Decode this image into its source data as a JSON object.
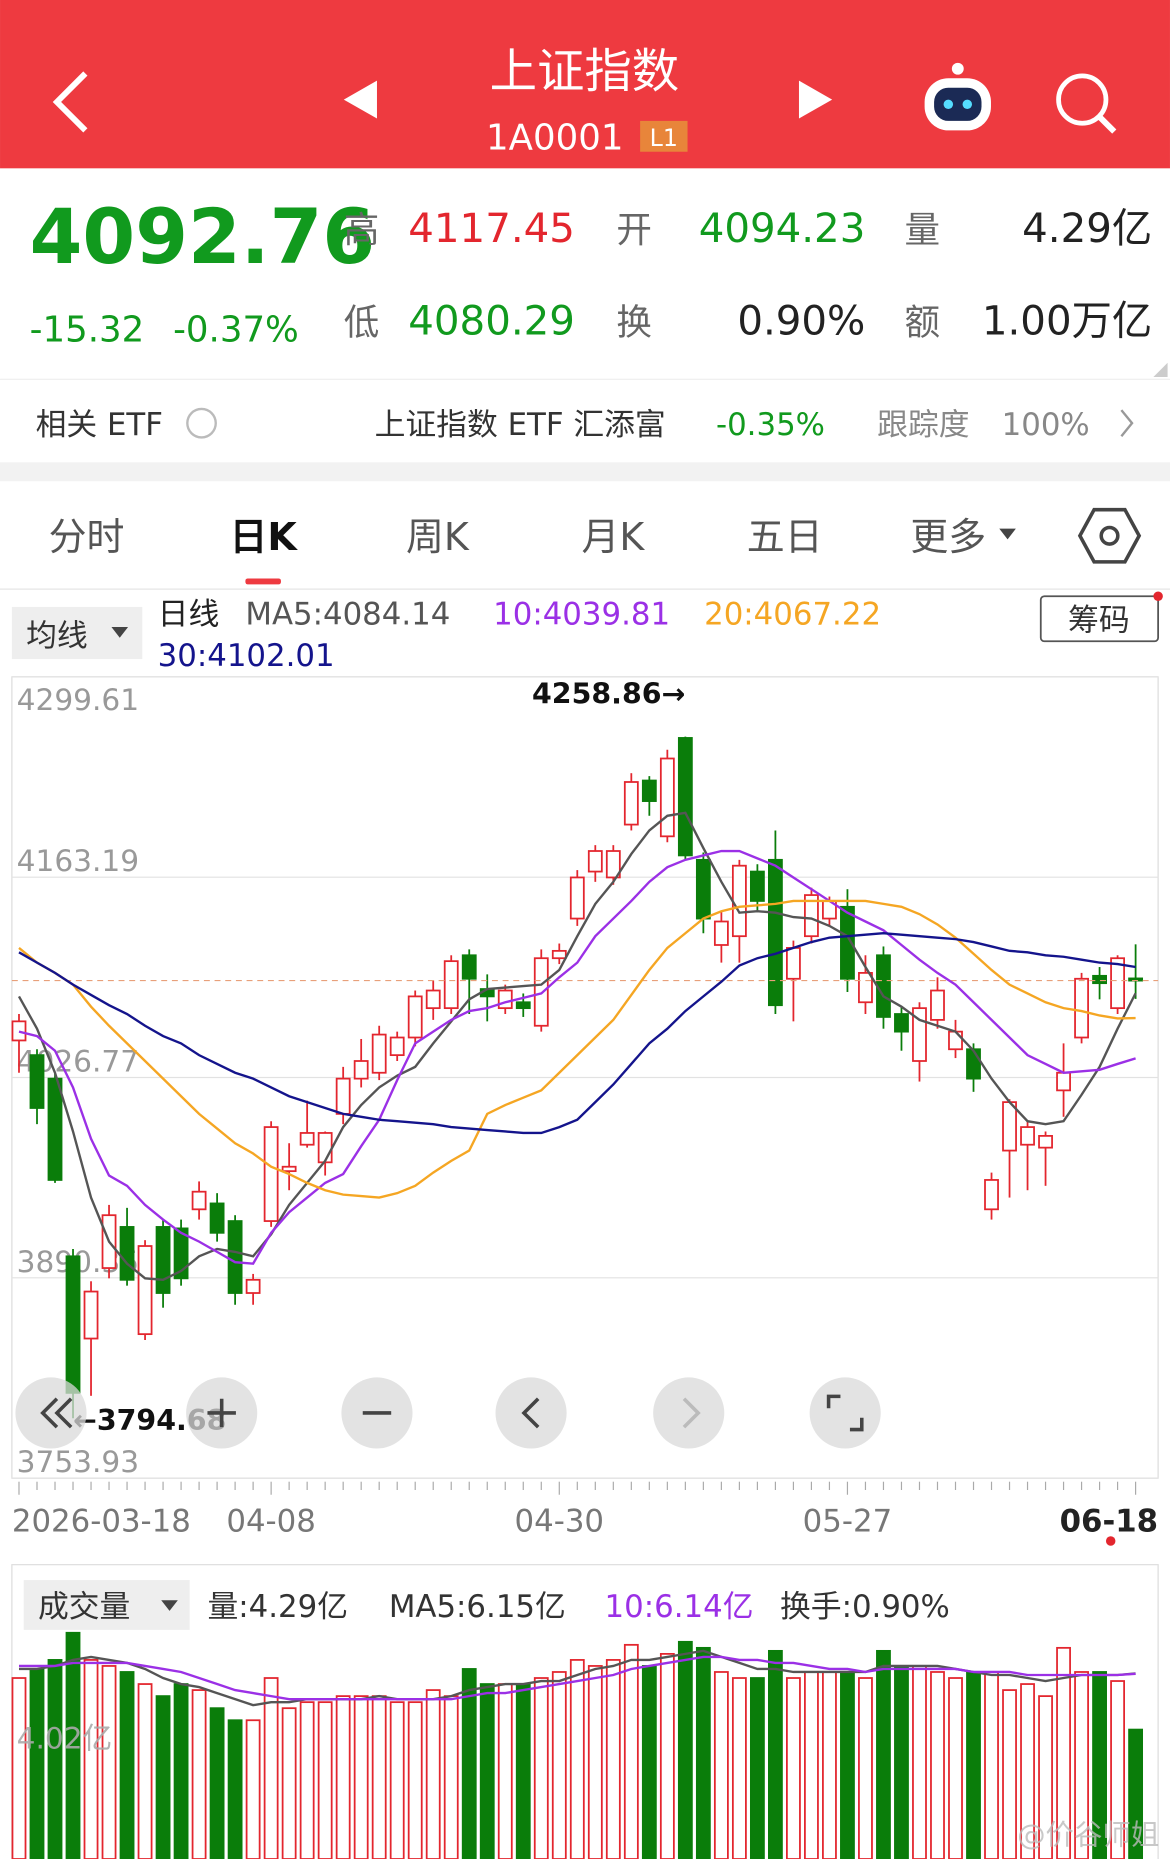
{
  "header": {
    "title": "上证指数",
    "code": "1A0001",
    "badge": "L1"
  },
  "quote": {
    "price": "4092.76",
    "change": "-15.32",
    "change_pct": "-0.37%",
    "stats": [
      {
        "label": "高",
        "value": "4117.45"
      },
      {
        "label": "开",
        "value": "4094.23"
      },
      {
        "label": "量",
        "value": "4.29亿"
      },
      {
        "label": "低",
        "value": "4080.29"
      },
      {
        "label": "换",
        "value": "0.90%"
      },
      {
        "label": "额",
        "value": "1.00万亿"
      }
    ]
  },
  "etf": {
    "label": "相关 ETF",
    "name": "上证指数 ETF 汇添富",
    "change": "-0.35%",
    "tracking_label": "跟踪度",
    "tracking": "100%"
  },
  "tabs": [
    "分时",
    "日K",
    "周K",
    "月K",
    "五日",
    "更多"
  ],
  "chip_button": "筹码",
  "watermark": "@价谷师姐",
  "chart_data": [
    {
      "type": "candlestick",
      "selector": "均线",
      "title": "日线",
      "categories": [
        "2026-03-18",
        null,
        null,
        null,
        null,
        null,
        null,
        null,
        null,
        null,
        null,
        null,
        null,
        null,
        "04-08",
        null,
        null,
        null,
        null,
        null,
        null,
        null,
        null,
        null,
        null,
        null,
        null,
        null,
        null,
        null,
        "04-30",
        null,
        null,
        null,
        null,
        null,
        null,
        null,
        null,
        null,
        null,
        null,
        null,
        null,
        null,
        null,
        "05-27",
        null,
        null,
        null,
        null,
        null,
        null,
        null,
        null,
        null,
        null,
        null,
        null,
        null,
        null,
        null,
        "06-18"
      ],
      "open": [
        4052,
        4042,
        4026,
        3905,
        3849,
        3897,
        3925,
        3852,
        3925,
        3924,
        3937,
        3941,
        3929,
        3880,
        3929,
        3963,
        3981,
        3969,
        4002,
        4026,
        4030,
        4042,
        4054,
        4074,
        4074,
        4110,
        4087,
        4074,
        4078,
        4062,
        4108,
        4135,
        4167,
        4163,
        4199,
        4229,
        4191,
        4258,
        4175,
        4117,
        4123,
        4167,
        4175,
        4094,
        4123,
        4135,
        4143,
        4078,
        4110,
        4070,
        4038,
        4066,
        4046,
        4046,
        3937,
        3977,
        3981,
        3979,
        4018,
        4054,
        4096,
        4074,
        4094.23
      ],
      "high": [
        4070,
        4046,
        4030,
        3910,
        3888,
        3940,
        3938,
        3916,
        3930,
        3930,
        3956,
        3948,
        3933,
        3893,
        3997,
        3982,
        4011,
        3990,
        4034,
        4053,
        4062,
        4058,
        4086,
        4093,
        4110,
        4114,
        4097,
        4090,
        4084,
        4114,
        4118,
        4168,
        4185,
        4185,
        4234,
        4232,
        4250,
        4258.86,
        4180,
        4140,
        4175,
        4172,
        4195,
        4120,
        4156,
        4150,
        4155,
        4110,
        4116,
        4075,
        4078,
        4095,
        4066,
        4050,
        3962,
        4012,
        3997,
        3990,
        4050,
        4098,
        4102,
        4110,
        4117.45
      ],
      "low": [
        4030,
        3995,
        3955,
        3794.68,
        3810,
        3890,
        3885,
        3848,
        3870,
        3885,
        3930,
        3915,
        3872,
        3872,
        3925,
        3950,
        3979,
        3960,
        3995,
        4020,
        4025,
        4038,
        4048,
        4066,
        4070,
        4070,
        4065,
        4070,
        4068,
        4058,
        4104,
        4130,
        4160,
        4158,
        4195,
        4205,
        4187,
        4175,
        4125,
        4105,
        4105,
        4140,
        4070,
        4065,
        4118,
        4130,
        4085,
        4070,
        4060,
        4045,
        4024,
        4060,
        4040,
        4017,
        3930,
        3945,
        3950,
        3953,
        4000,
        4050,
        4080,
        4070,
        4080.29
      ],
      "close": [
        4065,
        4006,
        3957,
        3812,
        3881,
        3933,
        3889,
        3912,
        3880,
        3890,
        3949,
        3921,
        3880,
        3889,
        3993,
        3966,
        3989,
        3989,
        4026,
        4038,
        4056,
        4054,
        4082,
        4086,
        4106,
        4094,
        4082,
        4086,
        4074,
        4108,
        4113,
        4163,
        4181,
        4181,
        4228,
        4215,
        4244,
        4178,
        4135,
        4133,
        4171,
        4147,
        4076,
        4115,
        4151,
        4147,
        4094,
        4098,
        4068,
        4058,
        4074,
        4086,
        4058,
        4026,
        3957,
        4010,
        3993,
        3987,
        4030,
        4094,
        4091,
        4108,
        4092.76
      ],
      "up_color": "#e3262e",
      "down_color": "#0a7d0a",
      "series": [
        {
          "name": "MA5:4084.14",
          "color": "#555555",
          "values": [
            4082,
            4060,
            4030,
            3990,
            3945,
            3915,
            3900,
            3890,
            3889,
            3895,
            3905,
            3910,
            3908,
            3905,
            3920,
            3940,
            3955,
            3970,
            3993,
            4008,
            4020,
            4028,
            4034,
            4050,
            4065,
            4080,
            4087,
            4088,
            4089,
            4090,
            4100,
            4123,
            4145,
            4160,
            4179,
            4195,
            4205,
            4207,
            4183,
            4160,
            4139,
            4140,
            4139,
            4136,
            4135,
            4130,
            4123,
            4102,
            4082,
            4075,
            4066,
            4062,
            4058,
            4045,
            4026,
            4010,
            3997,
            3995,
            3997,
            4015,
            4034,
            4060,
            4084.14
          ]
        },
        {
          "name": "10:4039.81",
          "color": "#9b30e6",
          "values": [
            4058,
            4055,
            4045,
            4020,
            3985,
            3960,
            3953,
            3940,
            3930,
            3921,
            3915,
            3908,
            3901,
            3900,
            3921,
            3935,
            3945,
            3955,
            3961,
            3980,
            3998,
            4025,
            4050,
            4058,
            4066,
            4072,
            4074,
            4078,
            4081,
            4084,
            4095,
            4105,
            4123,
            4135,
            4147,
            4160,
            4170,
            4175,
            4178,
            4181,
            4181,
            4176,
            4171,
            4163,
            4155,
            4147,
            4139,
            4133,
            4127,
            4117,
            4107,
            4098,
            4090,
            4078,
            4066,
            4054,
            4042,
            4036,
            4030,
            4031,
            4032,
            4036,
            4039.81
          ]
        },
        {
          "name": "20:4067.22",
          "color": "#f5a623",
          "values": [
            4115,
            4105,
            4098,
            4090,
            4075,
            4062,
            4050,
            4038,
            4026,
            4014,
            4002,
            3992,
            3982,
            3975,
            3966,
            3961,
            3955,
            3950,
            3947,
            3946,
            3945,
            3948,
            3953,
            3962,
            3970,
            3977,
            4002,
            4008,
            4013,
            4018,
            4030,
            4042,
            4054,
            4066,
            4083,
            4100,
            4115,
            4125,
            4135,
            4140,
            4143,
            4144,
            4145,
            4147,
            4147,
            4147,
            4147,
            4147,
            4145,
            4143,
            4138,
            4131,
            4122,
            4111,
            4100,
            4090,
            4084,
            4078,
            4074,
            4072,
            4069,
            4067,
            4067.22
          ]
        },
        {
          "name": "30:4102.01",
          "color": "#14148c",
          "values": [
            4112,
            4105,
            4098,
            4090,
            4083,
            4076,
            4070,
            4062,
            4055,
            4050,
            4042,
            4036,
            4030,
            4026,
            4020,
            4014,
            4010,
            4006,
            4002,
            4000,
            3998,
            3997,
            3996,
            3995,
            3993,
            3992,
            3991,
            3990,
            3989,
            3989,
            3993,
            3998,
            4010,
            4022,
            4036,
            4050,
            4060,
            4072,
            4082,
            4092,
            4103,
            4108,
            4111,
            4115,
            4119,
            4122,
            4123,
            4124,
            4125,
            4124,
            4123,
            4122,
            4121,
            4119,
            4116,
            4113,
            4112,
            4110,
            4109,
            4107,
            4105,
            4104,
            4102.01
          ]
        }
      ],
      "ylim": [
        3753.93,
        4299.61
      ],
      "yticks": [
        4299.61,
        4163.19,
        4026.77,
        3890.35,
        3753.93
      ],
      "grid": true,
      "annotations": [
        {
          "value": 4258.86,
          "label": "4258.86→"
        },
        {
          "value": 3794.68,
          "label": "←3794.68"
        }
      ]
    },
    {
      "type": "bar",
      "title": "成交量",
      "legend_texts": [
        "量:4.29亿",
        "换手:0.90%"
      ],
      "values": [
        6.0,
        6.3,
        6.6,
        7.5,
        6.6,
        6.4,
        6.2,
        5.8,
        5.4,
        5.8,
        5.6,
        5.0,
        4.6,
        4.6,
        6.0,
        5.0,
        5.2,
        5.2,
        5.4,
        5.4,
        5.4,
        5.2,
        5.2,
        5.6,
        5.4,
        6.3,
        5.8,
        5.8,
        5.8,
        6.0,
        6.2,
        6.6,
        6.4,
        6.6,
        7.1,
        6.4,
        6.8,
        7.2,
        7.0,
        6.2,
        6.0,
        6.0,
        6.9,
        6.0,
        6.2,
        6.2,
        6.2,
        6.0,
        6.9,
        6.4,
        6.4,
        6.2,
        6.0,
        6.2,
        6.2,
        5.6,
        5.8,
        5.4,
        7.0,
        6.2,
        6.2,
        5.9,
        4.29
      ],
      "series": [
        {
          "name": "MA5:6.15亿",
          "color": "#555555",
          "values": [
            6.3,
            6.3,
            6.4,
            6.6,
            6.7,
            6.6,
            6.5,
            6.3,
            6.0,
            5.8,
            5.7,
            5.5,
            5.3,
            5.1,
            5.2,
            5.2,
            5.3,
            5.3,
            5.3,
            5.3,
            5.4,
            5.3,
            5.3,
            5.3,
            5.4,
            5.6,
            5.7,
            5.8,
            5.8,
            5.9,
            5.9,
            6.1,
            6.3,
            6.4,
            6.6,
            6.6,
            6.7,
            6.8,
            6.9,
            6.7,
            6.5,
            6.3,
            6.3,
            6.2,
            6.2,
            6.2,
            6.2,
            6.2,
            6.4,
            6.4,
            6.4,
            6.4,
            6.3,
            6.2,
            6.1,
            6.1,
            6.0,
            5.9,
            6.0,
            6.1,
            6.1,
            6.1,
            6.15
          ]
        },
        {
          "name": "10:6.14亿",
          "color": "#9b30e6",
          "values": [
            6.4,
            6.4,
            6.4,
            6.5,
            6.5,
            6.5,
            6.5,
            6.4,
            6.3,
            6.2,
            6.0,
            5.8,
            5.6,
            5.5,
            5.4,
            5.3,
            5.3,
            5.3,
            5.3,
            5.3,
            5.3,
            5.3,
            5.3,
            5.3,
            5.3,
            5.4,
            5.5,
            5.5,
            5.6,
            5.7,
            5.8,
            5.9,
            6.0,
            6.1,
            6.3,
            6.4,
            6.5,
            6.6,
            6.7,
            6.7,
            6.6,
            6.6,
            6.5,
            6.5,
            6.4,
            6.3,
            6.3,
            6.2,
            6.3,
            6.3,
            6.3,
            6.3,
            6.3,
            6.2,
            6.2,
            6.2,
            6.1,
            6.1,
            6.1,
            6.1,
            6.1,
            6.1,
            6.14
          ]
        }
      ],
      "ylim": [
        0,
        8.5
      ],
      "yticks": [
        {
          "value": 4.02,
          "label": "4.02亿"
        }
      ]
    }
  ]
}
